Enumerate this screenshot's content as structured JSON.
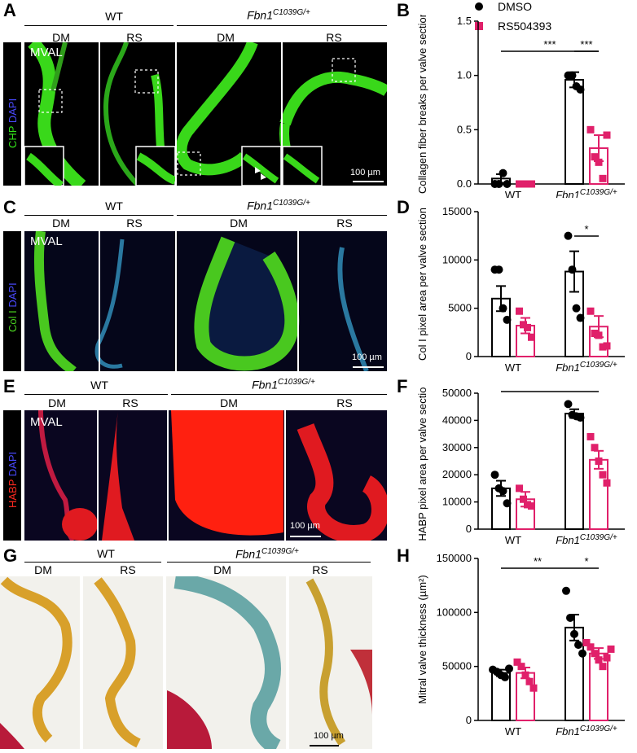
{
  "panels": {
    "A": {
      "letter": "A",
      "group_wt": "WT",
      "group_mut": "Fbn1",
      "group_mut_sup": "C1039G/+",
      "subs": [
        "DM",
        "RS",
        "DM",
        "RS"
      ],
      "stain1": "CHP",
      "stain2": "DAPI",
      "region": "MVAL",
      "scale": "100 µm"
    },
    "C": {
      "letter": "C",
      "group_wt": "WT",
      "group_mut": "Fbn1",
      "group_mut_sup": "C1039G/+",
      "subs": [
        "DM",
        "RS",
        "DM",
        "RS"
      ],
      "stain1": "Col I",
      "stain2": "DAPI",
      "region": "MVAL",
      "scale": "100 µm"
    },
    "E": {
      "letter": "E",
      "group_wt": "WT",
      "group_mut": "Fbn1",
      "group_mut_sup": "C1039G/+",
      "subs": [
        "DM",
        "RS",
        "DM",
        "RS"
      ],
      "stain1": "HABP",
      "stain2": "DAPI",
      "region": "MVAL",
      "scale": "100 µm"
    },
    "G": {
      "letter": "G",
      "group_wt": "WT",
      "group_mut": "Fbn1",
      "group_mut_sup": "C1039G/+",
      "subs": [
        "DM",
        "RS",
        "DM",
        "RS"
      ],
      "scale": "100 µm"
    }
  },
  "legend": {
    "dmso": "DMSO",
    "rs": "RS504393"
  },
  "colors": {
    "dmso": "#000000",
    "rs": "#e0206a",
    "chp": "#33e01a",
    "col": "#49d01f",
    "habp": "#ff1a10",
    "dapi": "#2a2ae0"
  },
  "chart_data": [
    {
      "letter": "B",
      "type": "bar",
      "ylabel": "Collagen fiber breaks per valve section",
      "ticks": [
        "0.0",
        "0.5",
        "1.0",
        "1.5"
      ],
      "ylim": [
        0,
        1.5
      ],
      "categories": [
        "WT",
        "Fbn1"
      ],
      "cat_sup": [
        "",
        "C1039G/+"
      ],
      "series": [
        {
          "name": "DMSO",
          "values": [
            0.05,
            0.96
          ],
          "err": [
            0.04,
            0.07
          ],
          "points": [
            [
              0,
              0,
              0.1,
              0
            ],
            [
              1,
              1,
              0.9,
              0.87
            ]
          ]
        },
        {
          "name": "RS504393",
          "values": [
            0.0,
            0.33
          ],
          "err": [
            0.0,
            0.12
          ],
          "points": [
            [
              0,
              0,
              0,
              0
            ],
            [
              0.5,
              0.25,
              0.2,
              0.05,
              0.45
            ]
          ]
        }
      ],
      "sig": [
        {
          "text": "***"
        },
        {
          "text": "***"
        }
      ]
    },
    {
      "letter": "D",
      "type": "bar",
      "ylabel": "Col I pixel area per valve section",
      "ticks": [
        "0",
        "5000",
        "10000",
        "15000"
      ],
      "ylim": [
        0,
        15000
      ],
      "categories": [
        "WT",
        "Fbn1"
      ],
      "cat_sup": [
        "",
        "C1039G/+"
      ],
      "series": [
        {
          "name": "DMSO",
          "values": [
            6000,
            8800
          ],
          "err": [
            1300,
            2100
          ],
          "points": [
            [
              9000,
              9000,
              5000,
              3800
            ],
            [
              12500,
              9000,
              5000,
              4000
            ]
          ]
        },
        {
          "name": "RS504393",
          "values": [
            3200,
            3100
          ],
          "err": [
            800,
            1100
          ],
          "points": [
            [
              4700,
              3300,
              3000,
              2000
            ],
            [
              4700,
              2400,
              2200,
              1000,
              1100
            ]
          ]
        }
      ],
      "sig": [
        {
          "text": "*"
        }
      ]
    },
    {
      "letter": "F",
      "type": "bar",
      "ylabel": "HABP pixel area per valve section",
      "ticks": [
        "0",
        "10000",
        "20000",
        "30000",
        "40000",
        "50000"
      ],
      "ylim": [
        0,
        50000
      ],
      "categories": [
        "WT",
        "Fbn1"
      ],
      "cat_sup": [
        "",
        "C1039G/+"
      ],
      "series": [
        {
          "name": "DMSO",
          "values": [
            15000,
            42500
          ],
          "err": [
            2800,
            1600
          ],
          "points": [
            [
              20000,
              15000,
              14000,
              9500
            ],
            [
              46000,
              42000,
              41500,
              41000
            ]
          ]
        },
        {
          "name": "RS504393",
          "values": [
            11000,
            25500
          ],
          "err": [
            2700,
            3300
          ],
          "points": [
            [
              15000,
              11000,
              9000,
              8500
            ],
            [
              34000,
              30000,
              25000,
              20000,
              17000
            ]
          ]
        }
      ],
      "sig": [
        {
          "text": "***"
        },
        {
          "text": "**"
        }
      ]
    },
    {
      "letter": "H",
      "type": "bar",
      "ylabel": "Mitral valve thickness (µm²)",
      "ticks": [
        "0",
        "50000",
        "100000",
        "150000"
      ],
      "ylim": [
        0,
        150000
      ],
      "categories": [
        "WT",
        "Fbn1"
      ],
      "cat_sup": [
        "",
        "C1039G/+"
      ],
      "series": [
        {
          "name": "DMSO",
          "values": [
            44000,
            86000
          ],
          "err": [
            3000,
            12000
          ],
          "points": [
            [
              47000,
              45000,
              42000,
              40000,
              48000
            ],
            [
              120000,
              95000,
              80000,
              70000,
              62000
            ]
          ]
        },
        {
          "name": "RS504393",
          "values": [
            44000,
            62000
          ],
          "err": [
            5000,
            5000
          ],
          "points": [
            [
              54000,
              50000,
              42000,
              36000,
              30000
            ],
            [
              72000,
              68000,
              62000,
              56000,
              50000,
              58000,
              66000
            ]
          ]
        }
      ],
      "sig": [
        {
          "text": "**"
        },
        {
          "text": "*"
        }
      ]
    }
  ]
}
